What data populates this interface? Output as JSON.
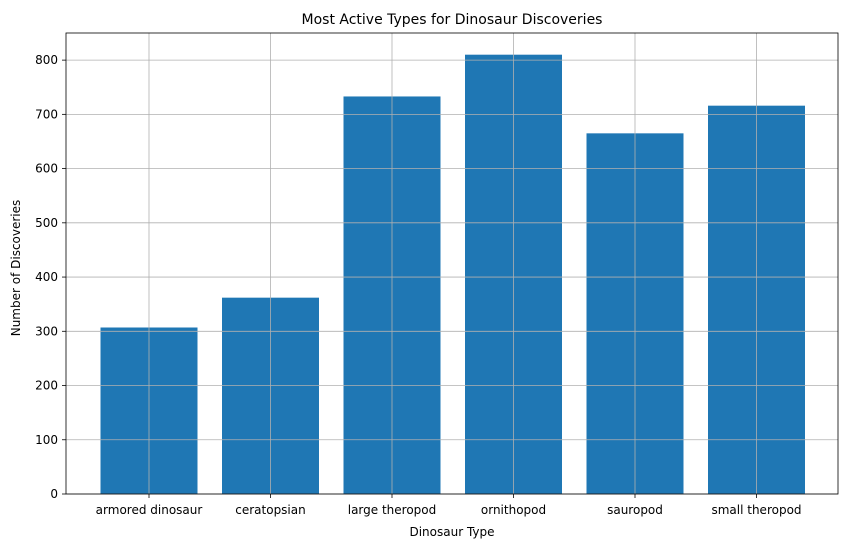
{
  "chart_data": {
    "type": "bar",
    "title": "Most Active Types for Dinosaur Discoveries",
    "xlabel": "Dinosaur Type",
    "ylabel": "Number of Discoveries",
    "categories": [
      "armored dinosaur",
      "ceratopsian",
      "large theropod",
      "ornithopod",
      "sauropod",
      "small theropod"
    ],
    "values": [
      307,
      362,
      733,
      810,
      665,
      716
    ],
    "ylim": [
      0,
      850
    ],
    "yticks": [
      0,
      100,
      200,
      300,
      400,
      500,
      600,
      700,
      800
    ],
    "grid": true,
    "colors": {
      "bar": "#1f77b4",
      "grid": "#b0b0b0",
      "axis": "#000000"
    }
  }
}
